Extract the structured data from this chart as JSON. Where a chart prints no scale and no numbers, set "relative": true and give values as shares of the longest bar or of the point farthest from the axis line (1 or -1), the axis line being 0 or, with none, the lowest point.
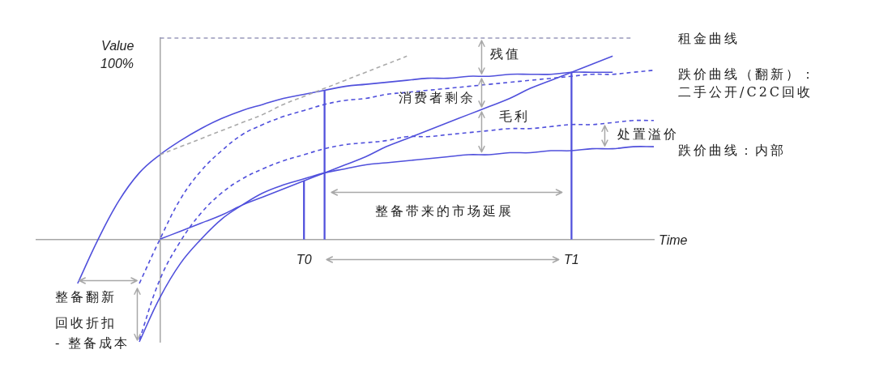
{
  "chart_data": {
    "type": "line",
    "relative": true,
    "xlabel": "Time",
    "ylabel": "Value",
    "categories": [
      null,
      null,
      null,
      null,
      null,
      null,
      null,
      null,
      null,
      null,
      null,
      null,
      null,
      "T0",
      null,
      null,
      null,
      null,
      null,
      null,
      null,
      null,
      null,
      null,
      null,
      null,
      "T1",
      null,
      null,
      null,
      null
    ],
    "series": [
      {
        "color": "#9999bb",
        "line_style": "dashed",
        "values": [
          null,
          null,
          null,
          null,
          null,
          null,
          1,
          1,
          1,
          1,
          1,
          1,
          1,
          1,
          1,
          1,
          1,
          1,
          1,
          1,
          1,
          1,
          1,
          1,
          1,
          1,
          1,
          1,
          1,
          1,
          null
        ]
      },
      {
        "color": "#aaaaaa",
        "line_style": "dashed",
        "values": [
          null,
          null,
          null,
          null,
          null,
          null,
          0.42,
          0.46,
          0.5,
          0.54,
          0.58,
          0.62,
          0.67,
          0.71,
          0.75,
          0.79,
          0.83,
          0.87,
          0.91,
          null,
          null,
          null,
          null,
          null,
          null,
          null,
          null,
          null,
          null,
          null,
          null
        ]
      },
      {
        "color": "#5050dc",
        "values": [
          null,
          null,
          -0.22,
          0,
          0.19,
          0.33,
          0.42,
          0.49,
          0.55,
          0.6,
          0.64,
          0.67,
          0.7,
          0.72,
          0.74,
          0.76,
          0.77,
          0.78,
          0.79,
          0.8,
          0.8,
          0.81,
          0.81,
          0.82,
          0.82,
          0.82,
          0.83,
          0.83,
          0.83,
          null,
          null
        ]
      },
      {
        "name": "跌价曲线（翻新）：二手公开/C2C回收",
        "color": "#5050dc",
        "line_style": "dashed",
        "values": [
          null,
          null,
          null,
          null,
          null,
          -0.22,
          0,
          0.2,
          0.34,
          0.44,
          0.52,
          0.57,
          0.61,
          0.64,
          0.67,
          0.69,
          0.7,
          0.72,
          0.73,
          0.74,
          0.75,
          0.76,
          0.77,
          0.78,
          0.79,
          0.8,
          0.81,
          0.82,
          0.82,
          0.83,
          0.84
        ]
      },
      {
        "color": "#5050dc",
        "line_style": "dashed",
        "values": [
          null,
          null,
          null,
          null,
          null,
          -0.5,
          -0.2,
          -0.01,
          0.13,
          0.23,
          0.3,
          0.35,
          0.39,
          0.42,
          0.45,
          0.47,
          0.48,
          0.49,
          0.51,
          0.51,
          0.52,
          0.53,
          0.54,
          0.55,
          0.55,
          0.56,
          0.57,
          0.57,
          0.58,
          0.59,
          0.59
        ]
      },
      {
        "name": "跌价曲线：内部",
        "color": "#5050dc",
        "values": [
          null,
          null,
          null,
          null,
          null,
          -0.51,
          -0.29,
          -0.12,
          0,
          0.1,
          0.17,
          0.23,
          0.27,
          0.3,
          0.33,
          0.35,
          0.37,
          0.38,
          0.39,
          0.4,
          0.41,
          0.42,
          0.42,
          0.43,
          0.43,
          0.44,
          0.44,
          0.45,
          0.45,
          0.46,
          0.46
        ]
      },
      {
        "name": "租金曲线",
        "color": "#5050dc",
        "values": [
          null,
          null,
          null,
          null,
          null,
          null,
          0,
          0.04,
          0.08,
          0.12,
          0.17,
          0.21,
          0.25,
          0.29,
          0.33,
          0.37,
          0.41,
          0.46,
          0.5,
          0.54,
          0.58,
          0.62,
          0.66,
          0.7,
          0.75,
          0.79,
          0.83,
          0.87,
          0.91,
          null,
          null
        ]
      },
      {
        "type": "bar",
        "color": "#5050dc",
        "values": [
          null,
          null,
          null,
          null,
          null,
          null,
          null,
          null,
          null,
          null,
          null,
          null,
          null,
          0.29,
          0.74,
          null,
          null,
          null,
          null,
          null,
          null,
          null,
          null,
          null,
          null,
          null,
          0.83,
          null,
          null,
          null,
          null
        ]
      }
    ],
    "annotations": [
      "100%",
      "残值",
      "消费者剩余",
      "毛利",
      "处置溢价",
      "整备带来的市场延展",
      "整备翻新",
      "回收折扣\n- 整备成本"
    ]
  }
}
